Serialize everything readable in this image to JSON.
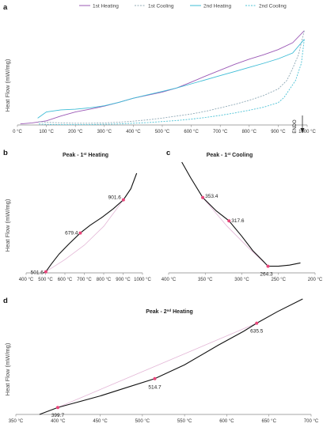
{
  "colors": {
    "heating1": "#9b59b6",
    "cooling1": "#8fa9b6",
    "heating2": "#3dbcd6",
    "cooling2": "#4ec3d6",
    "measured": "#111111",
    "baseline": "#e3b6d6",
    "point": "#e8457a",
    "axis": "#888888"
  },
  "chart_data": [
    {
      "panel": "a",
      "type": "line",
      "ylabel": "Heat Flow (mW/mg)",
      "xlim": [
        0,
        1000
      ],
      "x_ticks": [
        "0 °C",
        "100 °C",
        "200 °C",
        "300 °C",
        "400 °C",
        "500 °C",
        "600 °C",
        "700 °C",
        "800 °C",
        "900 °C",
        "1000 °C"
      ],
      "endo_label": "ENDO",
      "legend_position": "top",
      "series": [
        {
          "name": "1st Heating",
          "style": "solid",
          "color": "#9b59b6",
          "x": [
            10,
            50,
            100,
            150,
            200,
            250,
            300,
            350,
            400,
            450,
            500,
            550,
            600,
            650,
            700,
            750,
            800,
            850,
            900,
            950,
            990
          ],
          "y": [
            0.3,
            0.6,
            1.2,
            2.6,
            3.8,
            4.6,
            5.5,
            6.6,
            7.8,
            8.7,
            9.6,
            10.8,
            12.5,
            14.3,
            16.0,
            17.7,
            19.2,
            20.5,
            22.0,
            24.0,
            27.5
          ]
        },
        {
          "name": "1st Cooling",
          "style": "dashed",
          "color": "#8fa9b6",
          "x": [
            990,
            970,
            950,
            930,
            900,
            850,
            800,
            750,
            700,
            650,
            600,
            550,
            500,
            450,
            400,
            350,
            300,
            250,
            200,
            150,
            100,
            70
          ],
          "y": [
            27.5,
            20.5,
            16.5,
            13.0,
            10.5,
            8.6,
            7.2,
            6.0,
            5.0,
            4.0,
            3.2,
            2.6,
            2.0,
            1.5,
            1.1,
            0.8,
            0.6,
            0.5,
            0.5,
            0.6,
            0.8,
            1.0
          ]
        },
        {
          "name": "2nd Heating",
          "style": "solid",
          "color": "#3dbcd6",
          "x": [
            70,
            100,
            150,
            200,
            250,
            300,
            350,
            400,
            450,
            500,
            550,
            600,
            650,
            700,
            750,
            800,
            850,
            900,
            950,
            990
          ],
          "y": [
            2.0,
            3.8,
            4.4,
            4.6,
            5.0,
            5.6,
            6.6,
            7.8,
            8.8,
            9.8,
            10.8,
            12.0,
            13.2,
            14.4,
            15.6,
            16.8,
            18.0,
            19.3,
            21.0,
            25.0
          ]
        },
        {
          "name": "2nd Cooling",
          "style": "dashed",
          "color": "#4ec3d6",
          "x": [
            990,
            980,
            960,
            940,
            920,
            900,
            850,
            800,
            750,
            700,
            650,
            600,
            550,
            500,
            450,
            400,
            350,
            300,
            250,
            200,
            150,
            100,
            70
          ],
          "y": [
            25.0,
            18.0,
            13.0,
            10.5,
            8.0,
            6.5,
            5.2,
            4.3,
            3.5,
            2.8,
            2.2,
            1.7,
            1.3,
            1.0,
            0.7,
            0.5,
            0.3,
            0.2,
            0.1,
            0.1,
            0.1,
            0.2,
            0.3
          ]
        }
      ]
    },
    {
      "panel": "b",
      "type": "line",
      "title": "Peak - 1",
      "title_sup": "st",
      "title_suffix": " Heating",
      "ylabel": "Heat Flow (mW/mg)",
      "xlim": [
        400,
        1000
      ],
      "x_ticks": [
        "400 °C",
        "500 °C",
        "600 °C",
        "700 °C",
        "800 °C",
        "900 °C",
        "1000 °C"
      ],
      "curve": {
        "x": [
          490,
          501.6,
          530,
          570,
          620,
          679.4,
          730,
          790,
          850,
          901.6,
          940,
          970
        ],
        "y": [
          0,
          1.0,
          8,
          17,
          26,
          36,
          43,
          50,
          58,
          66,
          76,
          90
        ]
      },
      "baseline": {
        "x": [
          501.6,
          600,
          700,
          800,
          901.6
        ],
        "y": [
          1.0,
          12,
          25,
          42,
          66
        ]
      },
      "points": [
        {
          "x": 501.6,
          "y": 1.0,
          "label": "501.6"
        },
        {
          "x": 679.4,
          "y": 36,
          "label": "679.4"
        },
        {
          "x": 901.6,
          "y": 66,
          "label": "901.6"
        }
      ]
    },
    {
      "panel": "c",
      "type": "line",
      "title": "Peak - 1",
      "title_sup": "st",
      "title_suffix": " Cooling",
      "xlim": [
        400,
        200
      ],
      "x_ticks": [
        "400 °C",
        "350 °C",
        "300 °C",
        "250 °C",
        "200 °C"
      ],
      "curve": {
        "x": [
          382,
          370,
          353.4,
          335,
          317.6,
          300,
          285,
          270,
          264.3,
          250,
          235,
          220
        ],
        "y": [
          100,
          86,
          68,
          56,
          47,
          33,
          20,
          10,
          6,
          6,
          7,
          9
        ]
      },
      "baseline": {
        "x": [
          353.4,
          320,
          290,
          264.3
        ],
        "y": [
          68,
          42,
          22,
          6
        ]
      },
      "points": [
        {
          "x": 353.4,
          "y": 68,
          "label": "353.4"
        },
        {
          "x": 317.6,
          "y": 47,
          "label": "317.6"
        },
        {
          "x": 264.3,
          "y": 6,
          "label": "264.3"
        }
      ]
    },
    {
      "panel": "d",
      "type": "line",
      "title": "Peak - 2",
      "title_sup": "nd",
      "title_suffix": " Heating",
      "ylabel": "Heat Flow (mW/mg)",
      "xlim": [
        350,
        700
      ],
      "x_ticks": [
        "350 °C",
        "400 °C",
        "450 °C",
        "500 °C",
        "550 °C",
        "600 °C",
        "650 °C",
        "700 °C"
      ],
      "curve": {
        "x": [
          378,
          399.7,
          420,
          450,
          480,
          514.7,
          550,
          590,
          620,
          635.5,
          660,
          690
        ],
        "y": [
          0,
          6,
          10,
          16,
          23,
          31,
          43,
          60,
          72,
          79,
          89,
          100
        ]
      },
      "baseline": {
        "x": [
          399.7,
          635.5
        ],
        "y": [
          6,
          79
        ]
      },
      "points": [
        {
          "x": 399.7,
          "y": 6,
          "label": "399.7"
        },
        {
          "x": 514.7,
          "y": 31,
          "label": "514.7"
        },
        {
          "x": 635.5,
          "y": 79,
          "label": "635.5"
        }
      ]
    }
  ]
}
